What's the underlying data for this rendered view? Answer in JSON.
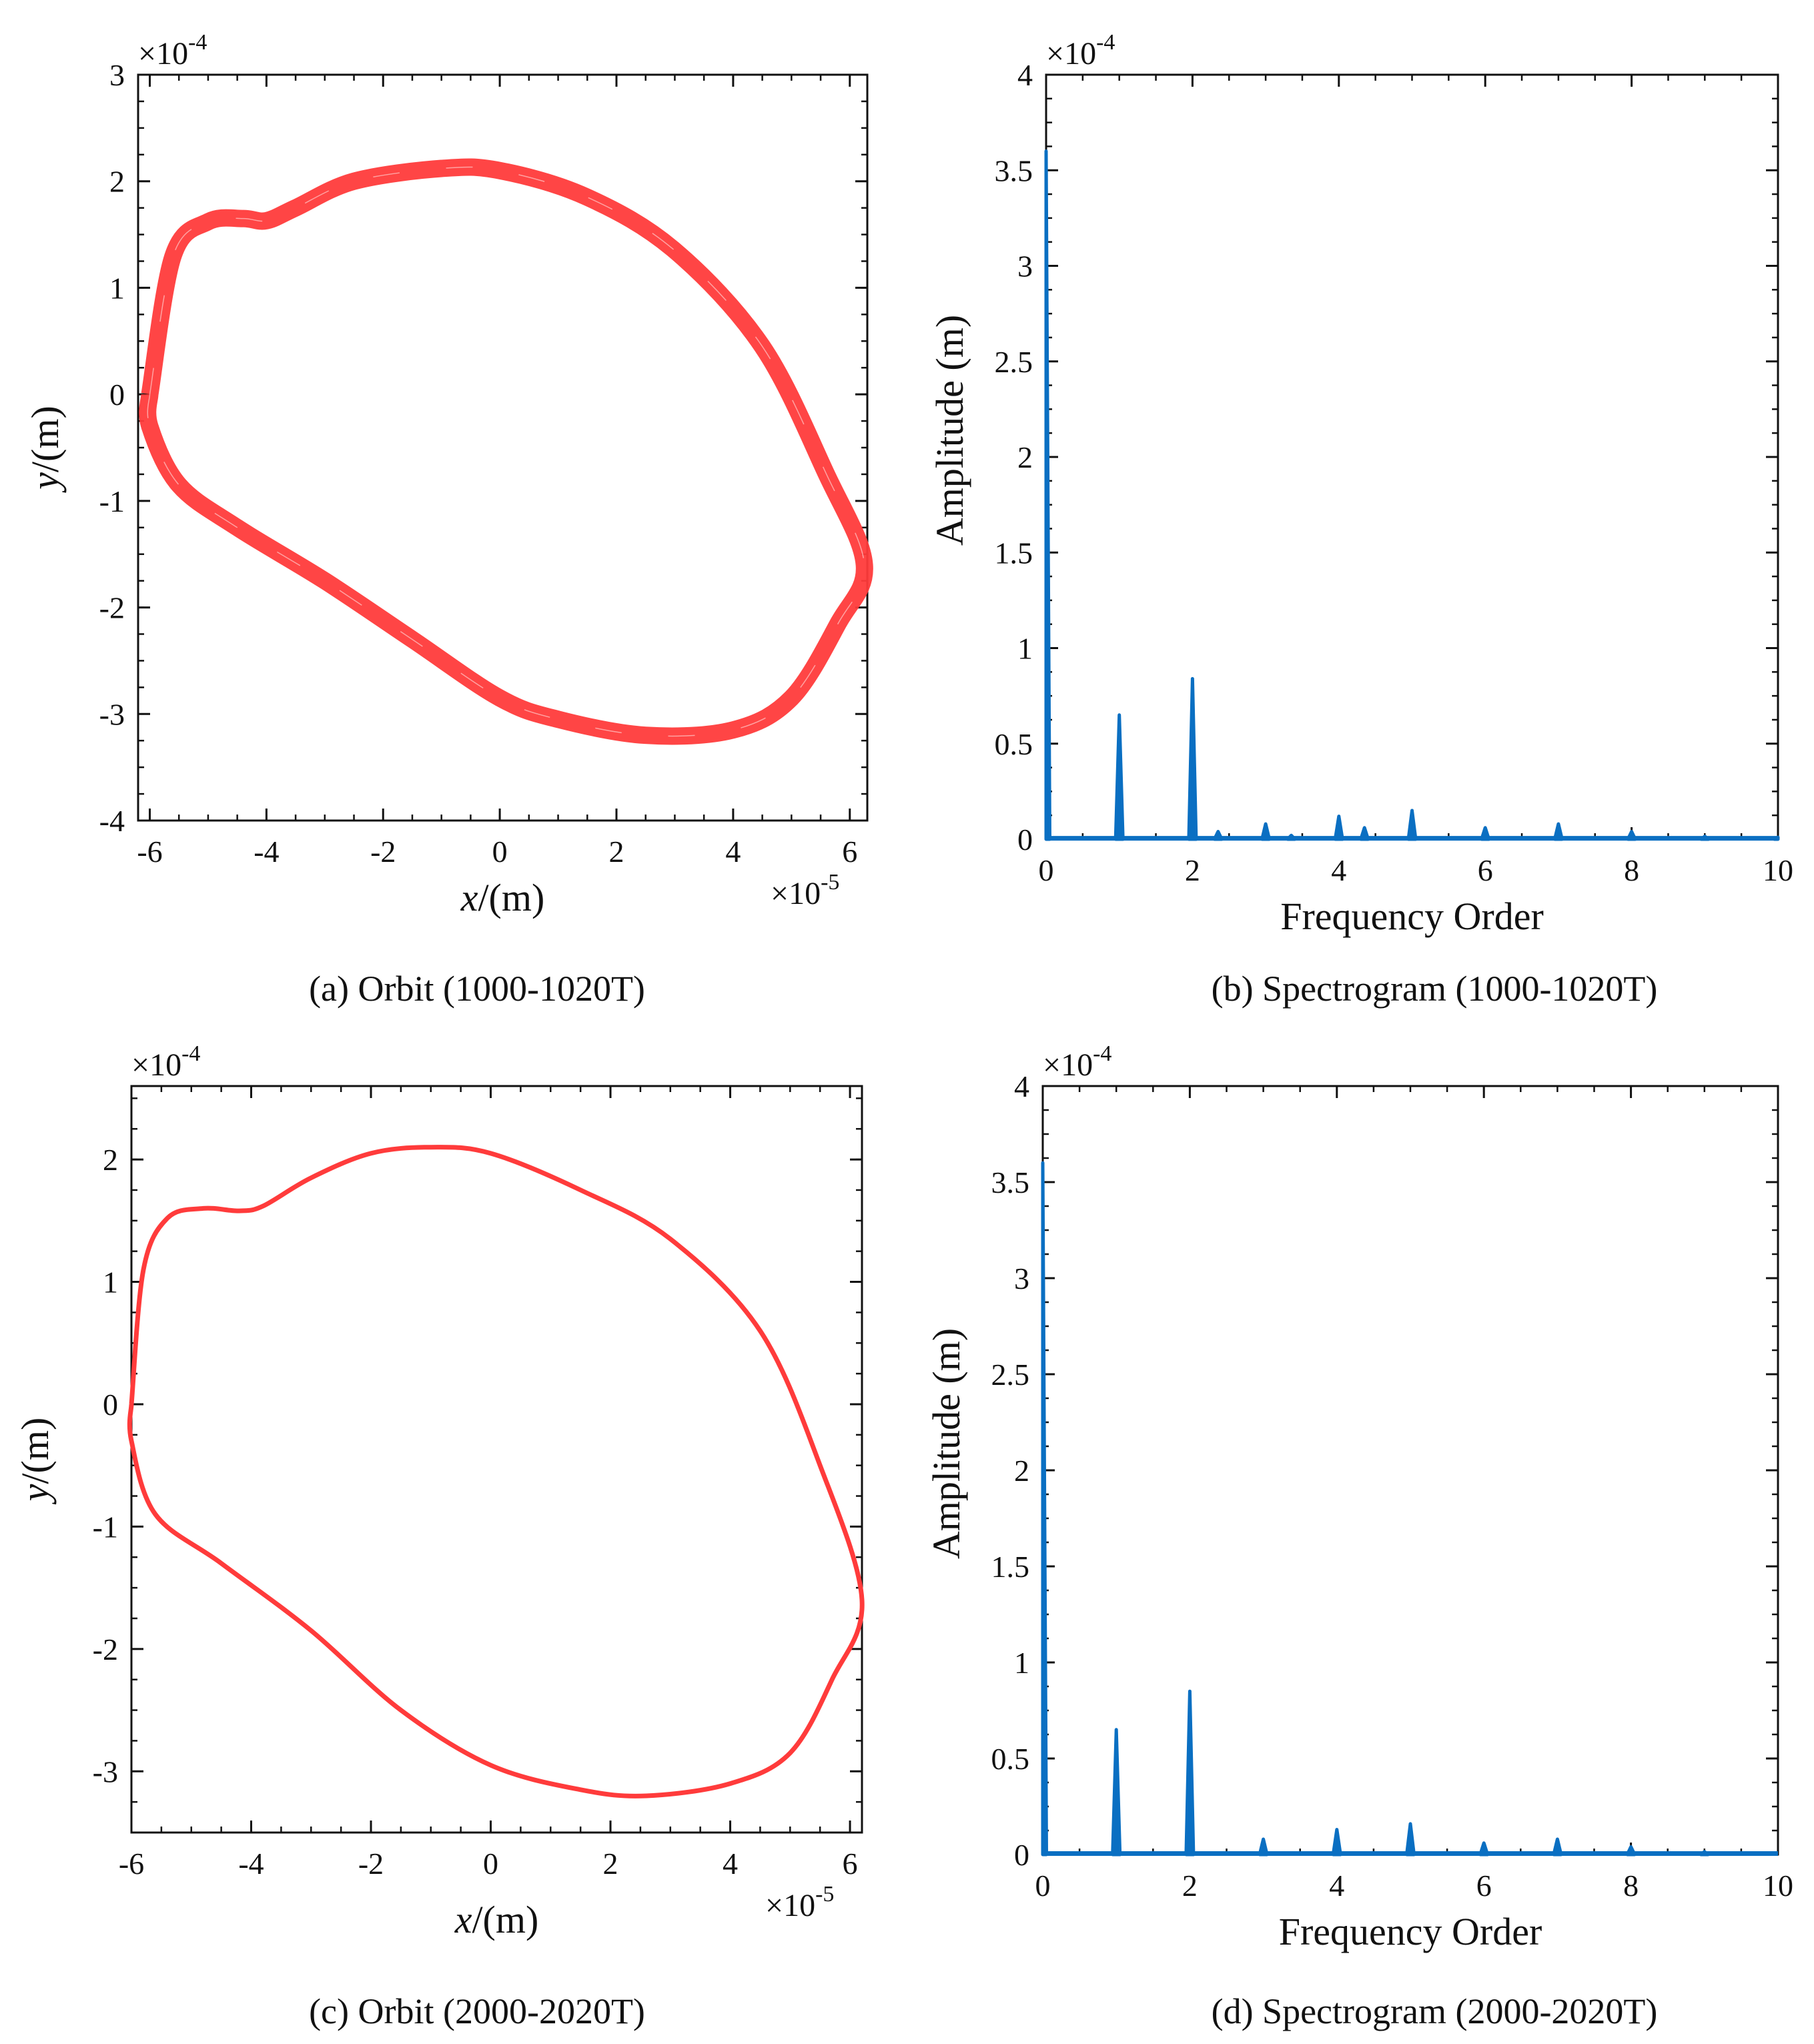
{
  "figure": {
    "panels": [
      {
        "id": "a",
        "caption": "(a) Orbit (1000-1020T)"
      },
      {
        "id": "b",
        "caption": "(b) Spectrogram (1000-1020T)"
      },
      {
        "id": "c",
        "caption": "(c) Orbit (2000-2020T)"
      },
      {
        "id": "d",
        "caption": "(d) Spectrogram (2000-2020T)"
      }
    ]
  },
  "colors": {
    "orbit": "#ff3b3b",
    "spectrum": "#0a6fc2",
    "axes": "#111111"
  },
  "chart_data": [
    {
      "type": "line",
      "panel": "a",
      "title": "(a) Orbit (1000-1020T)",
      "xlabel_var": "x",
      "xlabel_unit": "/(m)",
      "ylabel_var": "y",
      "ylabel_unit": "/(m)",
      "x_multiplier": "×10",
      "x_exponent": "-5",
      "y_multiplier": "×10",
      "y_exponent": "-4",
      "xlim": [
        -6.2,
        6.3
      ],
      "ylim": [
        -4,
        3
      ],
      "xticks": [
        -6,
        -4,
        -2,
        0,
        2,
        4,
        6
      ],
      "yticks": [
        3,
        2,
        1,
        0,
        -1,
        -2,
        -3,
        -4
      ],
      "xtick_labels": [
        "-6",
        "-4",
        "-2",
        "0",
        "2",
        "4",
        "6"
      ],
      "ytick_labels": [
        "3",
        "2",
        "1",
        "0",
        "-1",
        "-2",
        "-3",
        "-4"
      ],
      "band": true,
      "x": [
        -6.0,
        -5.6,
        -5.0,
        -4.4,
        -4.0,
        -3.5,
        -2.5,
        -1.0,
        0.0,
        1.5,
        3.0,
        4.5,
        5.6,
        6.25,
        5.8,
        5.0,
        4.0,
        2.5,
        1.0,
        0.0,
        -1.5,
        -3.0,
        -4.5,
        -5.5,
        -6.0,
        -6.0
      ],
      "y": [
        0.0,
        1.3,
        1.62,
        1.65,
        1.63,
        1.75,
        2.0,
        2.12,
        2.1,
        1.85,
        1.35,
        0.45,
        -0.75,
        -1.6,
        -2.15,
        -2.85,
        -3.15,
        -3.2,
        -3.05,
        -2.85,
        -2.3,
        -1.75,
        -1.25,
        -0.85,
        -0.3,
        0.0
      ]
    },
    {
      "type": "line",
      "panel": "b",
      "title": "(b) Spectrogram (1000-1020T)",
      "xlabel": "Frequency Order",
      "ylabel": "Amplitude (m)",
      "y_multiplier": "×10",
      "y_exponent": "-4",
      "xlim": [
        0,
        10
      ],
      "ylim": [
        0,
        4
      ],
      "xticks": [
        0,
        2,
        4,
        6,
        8,
        10
      ],
      "yticks": [
        0,
        0.5,
        1,
        1.5,
        2,
        2.5,
        3,
        3.5,
        4
      ],
      "xtick_labels": [
        "0",
        "2",
        "4",
        "6",
        "8",
        "10"
      ],
      "ytick_labels": [
        "0",
        "0.5",
        "1",
        "1.5",
        "2",
        "2.5",
        "3",
        "3.5",
        "4"
      ],
      "peaks": [
        {
          "x": 0,
          "y": 3.6
        },
        {
          "x": 1,
          "y": 0.65
        },
        {
          "x": 2,
          "y": 0.84
        },
        {
          "x": 2.35,
          "y": 0.04
        },
        {
          "x": 3,
          "y": 0.08
        },
        {
          "x": 3.35,
          "y": 0.02
        },
        {
          "x": 4,
          "y": 0.12
        },
        {
          "x": 4.35,
          "y": 0.06
        },
        {
          "x": 5,
          "y": 0.15
        },
        {
          "x": 6,
          "y": 0.06
        },
        {
          "x": 7,
          "y": 0.08
        },
        {
          "x": 8,
          "y": 0.04
        },
        {
          "x": 9,
          "y": 0.015
        },
        {
          "x": 10,
          "y": 0.01
        }
      ]
    },
    {
      "type": "line",
      "panel": "c",
      "title": "(c) Orbit (2000-2020T)",
      "xlabel_var": "x",
      "xlabel_unit": "/(m)",
      "ylabel_var": "y",
      "ylabel_unit": "/(m)",
      "x_multiplier": "×10",
      "x_exponent": "-5",
      "y_multiplier": "×10",
      "y_exponent": "-4",
      "xlim": [
        -6.0,
        6.2
      ],
      "ylim": [
        -3.5,
        2.6
      ],
      "xticks": [
        -6,
        -4,
        -2,
        0,
        2,
        4,
        6
      ],
      "yticks": [
        2,
        1,
        0,
        -1,
        -2,
        -3
      ],
      "xtick_labels": [
        "-6",
        "-4",
        "-2",
        "0",
        "2",
        "4",
        "6"
      ],
      "ytick_labels": [
        "2",
        "1",
        "0",
        "-1",
        "-2",
        "-3"
      ],
      "band": false,
      "x": [
        -6.0,
        -5.8,
        -5.4,
        -4.8,
        -4.2,
        -3.8,
        -3.0,
        -2.0,
        -1.0,
        0.0,
        1.5,
        3.0,
        4.5,
        5.5,
        6.2,
        5.7,
        5.0,
        4.0,
        2.6,
        1.5,
        0.0,
        -1.5,
        -3.0,
        -4.5,
        -5.6,
        -6.0,
        -6.0
      ],
      "y": [
        0.0,
        1.1,
        1.52,
        1.6,
        1.58,
        1.62,
        1.85,
        2.05,
        2.1,
        2.05,
        1.75,
        1.35,
        0.6,
        -0.5,
        -1.6,
        -2.25,
        -2.85,
        -3.1,
        -3.2,
        -3.15,
        -2.95,
        -2.5,
        -1.85,
        -1.3,
        -0.9,
        -0.3,
        0.0
      ]
    },
    {
      "type": "line",
      "panel": "d",
      "title": "(d) Spectrogram (2000-2020T)",
      "xlabel": "Frequency Order",
      "ylabel": "Amplitude (m)",
      "y_multiplier": "×10",
      "y_exponent": "-4",
      "xlim": [
        0,
        10
      ],
      "ylim": [
        0,
        4
      ],
      "xticks": [
        0,
        2,
        4,
        6,
        8,
        10
      ],
      "yticks": [
        0,
        0.5,
        1,
        1.5,
        2,
        2.5,
        3,
        3.5,
        4
      ],
      "xtick_labels": [
        "0",
        "2",
        "4",
        "6",
        "8",
        "10"
      ],
      "ytick_labels": [
        "0",
        "0.5",
        "1",
        "1.5",
        "2",
        "2.5",
        "3",
        "3.5",
        "4"
      ],
      "peaks": [
        {
          "x": 0,
          "y": 3.6
        },
        {
          "x": 1,
          "y": 0.65
        },
        {
          "x": 2,
          "y": 0.85
        },
        {
          "x": 3,
          "y": 0.08
        },
        {
          "x": 4,
          "y": 0.13
        },
        {
          "x": 5,
          "y": 0.16
        },
        {
          "x": 6,
          "y": 0.06
        },
        {
          "x": 7,
          "y": 0.08
        },
        {
          "x": 8,
          "y": 0.04
        },
        {
          "x": 9,
          "y": 0.015
        }
      ]
    }
  ]
}
